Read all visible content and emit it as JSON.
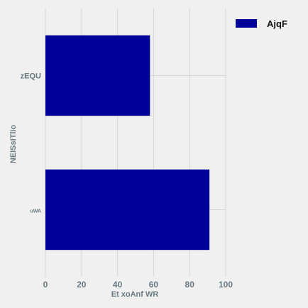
{
  "chart_data": {
    "type": "bar",
    "orientation": "horizontal",
    "categories": [
      "zEQU",
      "uWA"
    ],
    "series": [
      {
        "name": "AjqF",
        "values": [
          58,
          91
        ],
        "color": "#000099"
      }
    ],
    "xlabel": "Et xoAnf  WR",
    "ylabel": "NEISsITlio",
    "xlim": [
      0,
      100
    ],
    "xticks": [
      0,
      20,
      40,
      60,
      80,
      100
    ],
    "grid": true,
    "legend_position": "top-right",
    "background": "#f0f0f0"
  }
}
